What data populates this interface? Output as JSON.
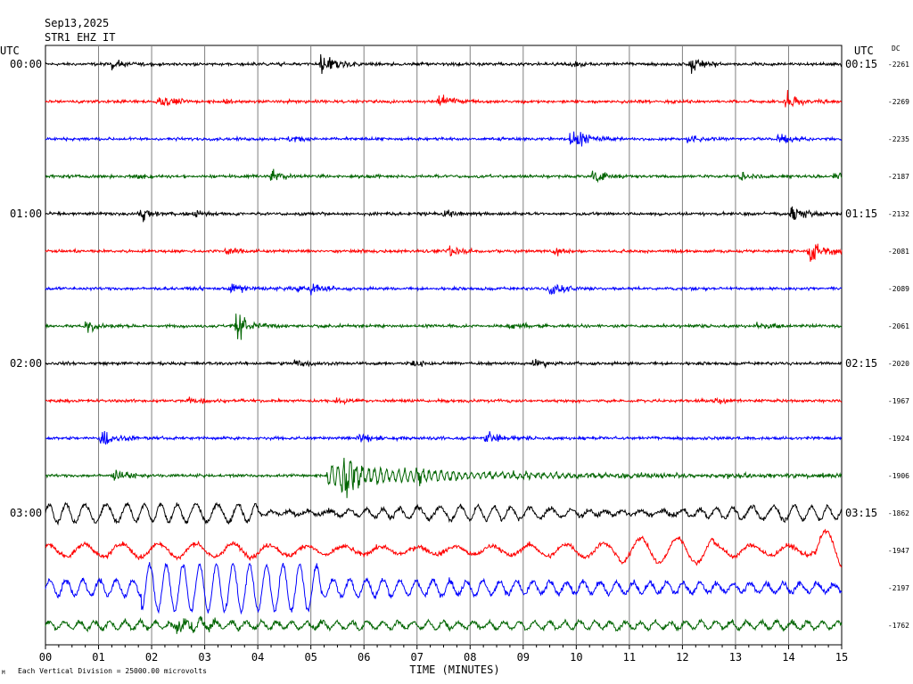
{
  "header": {
    "date": "Sep13,2025",
    "station": "STR1 EHZ IT",
    "utc_left": "UTC",
    "utc_right": "UTC",
    "dc_label": "DC"
  },
  "footer": {
    "scale_note": "Each Vertical Division = 25000.00 microvolts",
    "corner_mark": "M"
  },
  "chart_data": {
    "type": "line",
    "title": "",
    "xlabel": "TIME (MINUTES)",
    "ylabel": "",
    "xlim": [
      0,
      15
    ],
    "x_ticks": [
      "00",
      "01",
      "02",
      "03",
      "04",
      "05",
      "06",
      "07",
      "08",
      "09",
      "10",
      "11",
      "12",
      "13",
      "14",
      "15"
    ],
    "grid": true,
    "row_colors": [
      "#000000",
      "#ff0000",
      "#0000ff",
      "#006400"
    ],
    "left_time_labels": [
      "00:00",
      "01:00",
      "02:00",
      "03:00"
    ],
    "right_time_labels": [
      "00:15",
      "01:15",
      "02:15",
      "03:15"
    ],
    "dc_offsets": [
      -2261,
      -2269,
      -2235,
      -2187,
      -2132,
      -2081,
      -2089,
      -2061,
      -2020,
      -1967,
      -1924,
      -1906,
      -1862,
      -1947,
      -2197,
      -1762
    ],
    "events": [
      [
        {
          "t": 5.2,
          "a": 14
        },
        {
          "t": 12.15,
          "a": 9
        },
        {
          "t": 1.25,
          "a": 5
        },
        {
          "t": 9.95,
          "a": 4
        }
      ],
      [
        {
          "t": 2.1,
          "a": 9
        },
        {
          "t": 7.4,
          "a": 8
        },
        {
          "t": 13.95,
          "a": 12
        },
        {
          "t": 3.4,
          "a": 4
        }
      ],
      [
        {
          "t": 9.9,
          "a": 13
        },
        {
          "t": 13.8,
          "a": 7
        },
        {
          "t": 4.6,
          "a": 4
        },
        {
          "t": 12.1,
          "a": 5
        }
      ],
      [
        {
          "t": 4.25,
          "a": 8
        },
        {
          "t": 10.3,
          "a": 8
        },
        {
          "t": 13.1,
          "a": 6
        },
        {
          "t": 1.7,
          "a": 5
        },
        {
          "t": 14.85,
          "a": 5
        }
      ],
      [
        {
          "t": 1.8,
          "a": 9
        },
        {
          "t": 14.05,
          "a": 12
        },
        {
          "t": 2.8,
          "a": 5
        },
        {
          "t": 7.5,
          "a": 5
        }
      ],
      [
        {
          "t": 14.4,
          "a": 14
        },
        {
          "t": 7.6,
          "a": 8
        },
        {
          "t": 3.4,
          "a": 6
        },
        {
          "t": 9.6,
          "a": 5
        }
      ],
      [
        {
          "t": 9.5,
          "a": 10
        },
        {
          "t": 3.5,
          "a": 7
        },
        {
          "t": 5.0,
          "a": 7
        },
        {
          "t": 4.6,
          "a": 5
        }
      ],
      [
        {
          "t": 3.6,
          "a": 16
        },
        {
          "t": 0.75,
          "a": 9
        },
        {
          "t": 8.7,
          "a": 6
        },
        {
          "t": 13.4,
          "a": 5
        }
      ],
      [
        {
          "t": 4.7,
          "a": 6
        },
        {
          "t": 9.2,
          "a": 5
        },
        {
          "t": 6.9,
          "a": 4
        }
      ],
      [
        {
          "t": 2.7,
          "a": 5
        },
        {
          "t": 5.5,
          "a": 4
        },
        {
          "t": 12.6,
          "a": 4
        }
      ],
      [
        {
          "t": 1.05,
          "a": 11
        },
        {
          "t": 8.3,
          "a": 9
        },
        {
          "t": 5.9,
          "a": 7
        }
      ],
      [
        {
          "t": 5.6,
          "a": 28
        },
        {
          "t": 1.3,
          "a": 7
        },
        {
          "t": 7.0,
          "a": 8
        }
      ]
    ]
  }
}
